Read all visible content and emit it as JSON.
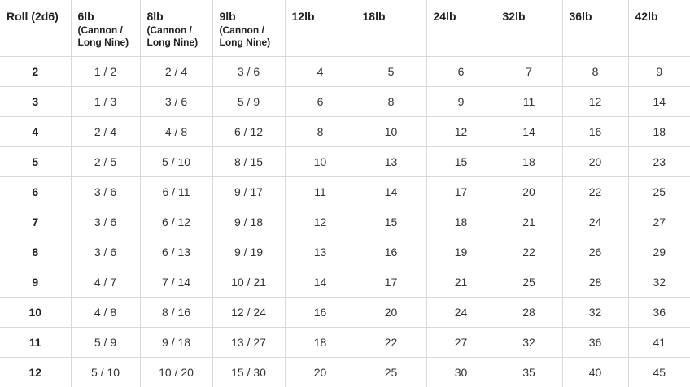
{
  "table": {
    "headers": [
      {
        "main": "Roll (2d6)",
        "sub": ""
      },
      {
        "main": "6lb",
        "sub": "(Cannon / Long Nine)"
      },
      {
        "main": "8lb",
        "sub": "(Cannon / Long Nine)"
      },
      {
        "main": "9lb",
        "sub": "(Cannon / Long Nine)"
      },
      {
        "main": "12lb",
        "sub": ""
      },
      {
        "main": "18lb",
        "sub": ""
      },
      {
        "main": "24lb",
        "sub": ""
      },
      {
        "main": "32lb",
        "sub": ""
      },
      {
        "main": "36lb",
        "sub": ""
      },
      {
        "main": "42lb",
        "sub": ""
      }
    ],
    "rows": [
      [
        "2",
        "1 / 2",
        "2 / 4",
        "3 / 6",
        "4",
        "5",
        "6",
        "7",
        "8",
        "9"
      ],
      [
        "3",
        "1 / 3",
        "3 / 6",
        "5 / 9",
        "6",
        "8",
        "9",
        "11",
        "12",
        "14"
      ],
      [
        "4",
        "2 / 4",
        "4 / 8",
        "6 / 12",
        "8",
        "10",
        "12",
        "14",
        "16",
        "18"
      ],
      [
        "5",
        "2 / 5",
        "5 / 10",
        "8 / 15",
        "10",
        "13",
        "15",
        "18",
        "20",
        "23"
      ],
      [
        "6",
        "3 / 6",
        "6 / 11",
        "9 / 17",
        "11",
        "14",
        "17",
        "20",
        "22",
        "25"
      ],
      [
        "7",
        "3 / 6",
        "6 / 12",
        "9 / 18",
        "12",
        "15",
        "18",
        "21",
        "24",
        "27"
      ],
      [
        "8",
        "3 / 6",
        "6 / 13",
        "9 / 19",
        "13",
        "16",
        "19",
        "22",
        "26",
        "29"
      ],
      [
        "9",
        "4 / 7",
        "7 / 14",
        "10 / 21",
        "14",
        "17",
        "21",
        "25",
        "28",
        "32"
      ],
      [
        "10",
        "4 / 8",
        "8 / 16",
        "12 / 24",
        "16",
        "20",
        "24",
        "28",
        "32",
        "36"
      ],
      [
        "11",
        "5 / 9",
        "9 / 18",
        "13 / 27",
        "18",
        "22",
        "27",
        "32",
        "36",
        "41"
      ],
      [
        "12",
        "5 / 10",
        "10 / 20",
        "15 / 30",
        "20",
        "25",
        "30",
        "35",
        "40",
        "45"
      ]
    ]
  }
}
